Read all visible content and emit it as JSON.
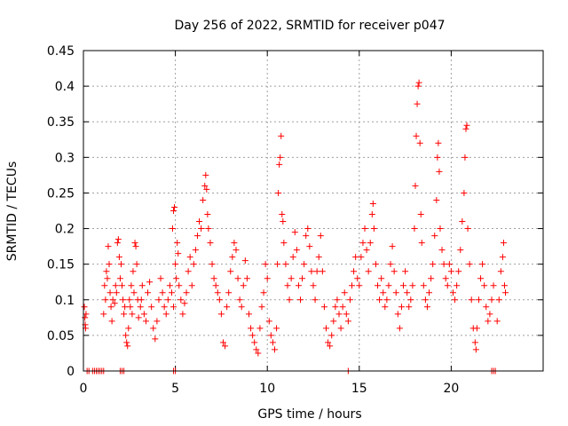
{
  "chart_data": {
    "type": "scatter",
    "title": "Day 256 of 2022, SRMTID for receiver p047",
    "xlabel": "GPS time / hours",
    "ylabel": "SRMTID / TECUs",
    "xlim": [
      0,
      25
    ],
    "ylim": [
      0,
      0.45
    ],
    "xticks": [
      0,
      5,
      10,
      15,
      20
    ],
    "xtick_labels": [
      "0",
      "5",
      "10",
      "15",
      "20"
    ],
    "yticks": [
      0,
      0.05,
      0.1,
      0.15,
      0.2,
      0.25,
      0.3,
      0.35,
      0.4,
      0.45
    ],
    "ytick_labels": [
      "0",
      "0.05",
      "0.1",
      "0.15",
      "0.2",
      "0.25",
      "0.3",
      "0.35",
      "0.4",
      "0.45"
    ],
    "grid": true,
    "marker": "+",
    "series": [
      {
        "name": "SRMTID",
        "color": "#ff0000",
        "points": [
          [
            0.05,
            0.09
          ],
          [
            0.08,
            0.075
          ],
          [
            0.1,
            0.065
          ],
          [
            0.12,
            0.06
          ],
          [
            0.14,
            0.08
          ],
          [
            0.2,
            0.0
          ],
          [
            0.3,
            0.0
          ],
          [
            0.5,
            0.0
          ],
          [
            0.6,
            0.0
          ],
          [
            0.7,
            0.0
          ],
          [
            0.8,
            0.0
          ],
          [
            0.9,
            0.0
          ],
          [
            1.0,
            0.0
          ],
          [
            1.1,
            0.0
          ],
          [
            1.1,
            0.08
          ],
          [
            1.15,
            0.12
          ],
          [
            1.2,
            0.1
          ],
          [
            1.25,
            0.14
          ],
          [
            1.3,
            0.13
          ],
          [
            1.35,
            0.175
          ],
          [
            1.4,
            0.15
          ],
          [
            1.45,
            0.11
          ],
          [
            1.5,
            0.09
          ],
          [
            1.55,
            0.07
          ],
          [
            1.6,
            0.1
          ],
          [
            1.7,
            0.095
          ],
          [
            1.75,
            0.12
          ],
          [
            1.8,
            0.11
          ],
          [
            1.85,
            0.18
          ],
          [
            1.9,
            0.185
          ],
          [
            1.95,
            0.16
          ],
          [
            2.0,
            0.13
          ],
          [
            2.05,
            0.15
          ],
          [
            2.1,
            0.12
          ],
          [
            2.15,
            0.1
          ],
          [
            2.2,
            0.08
          ],
          [
            2.25,
            0.09
          ],
          [
            2.0,
            0.0
          ],
          [
            2.1,
            0.0
          ],
          [
            2.2,
            0.0
          ],
          [
            2.3,
            0.05
          ],
          [
            2.35,
            0.04
          ],
          [
            2.4,
            0.035
          ],
          [
            2.45,
            0.06
          ],
          [
            2.5,
            0.1
          ],
          [
            2.55,
            0.09
          ],
          [
            2.6,
            0.12
          ],
          [
            2.65,
            0.08
          ],
          [
            2.7,
            0.14
          ],
          [
            2.75,
            0.11
          ],
          [
            2.8,
            0.18
          ],
          [
            2.85,
            0.175
          ],
          [
            2.9,
            0.15
          ],
          [
            2.95,
            0.1
          ],
          [
            3.0,
            0.075
          ],
          [
            3.1,
            0.09
          ],
          [
            3.15,
            0.1
          ],
          [
            3.2,
            0.12
          ],
          [
            3.3,
            0.08
          ],
          [
            3.4,
            0.07
          ],
          [
            3.5,
            0.11
          ],
          [
            3.6,
            0.125
          ],
          [
            3.7,
            0.09
          ],
          [
            3.8,
            0.06
          ],
          [
            3.9,
            0.045
          ],
          [
            4.0,
            0.07
          ],
          [
            4.1,
            0.1
          ],
          [
            4.2,
            0.13
          ],
          [
            4.3,
            0.11
          ],
          [
            4.4,
            0.09
          ],
          [
            4.5,
            0.08
          ],
          [
            4.6,
            0.1
          ],
          [
            4.7,
            0.12
          ],
          [
            4.8,
            0.11
          ],
          [
            4.9,
            0.09
          ],
          [
            4.85,
            0.2
          ],
          [
            4.9,
            0.225
          ],
          [
            4.95,
            0.23
          ],
          [
            5.0,
            0.15
          ],
          [
            5.05,
            0.13
          ],
          [
            5.1,
            0.18
          ],
          [
            5.15,
            0.165
          ],
          [
            4.9,
            0.0
          ],
          [
            5.0,
            0.0
          ],
          [
            5.2,
            0.12
          ],
          [
            5.3,
            0.1
          ],
          [
            5.4,
            0.08
          ],
          [
            5.5,
            0.095
          ],
          [
            5.6,
            0.11
          ],
          [
            5.7,
            0.14
          ],
          [
            5.8,
            0.16
          ],
          [
            5.9,
            0.12
          ],
          [
            6.0,
            0.15
          ],
          [
            6.1,
            0.17
          ],
          [
            6.2,
            0.19
          ],
          [
            6.3,
            0.21
          ],
          [
            6.4,
            0.2
          ],
          [
            6.5,
            0.24
          ],
          [
            6.6,
            0.26
          ],
          [
            6.65,
            0.275
          ],
          [
            6.7,
            0.255
          ],
          [
            6.75,
            0.22
          ],
          [
            6.8,
            0.2
          ],
          [
            6.9,
            0.18
          ],
          [
            7.0,
            0.15
          ],
          [
            7.1,
            0.13
          ],
          [
            7.2,
            0.12
          ],
          [
            7.3,
            0.11
          ],
          [
            7.4,
            0.1
          ],
          [
            7.5,
            0.08
          ],
          [
            7.6,
            0.04
          ],
          [
            7.7,
            0.035
          ],
          [
            7.8,
            0.09
          ],
          [
            7.9,
            0.11
          ],
          [
            8.0,
            0.14
          ],
          [
            8.1,
            0.16
          ],
          [
            8.2,
            0.18
          ],
          [
            8.3,
            0.17
          ],
          [
            8.4,
            0.13
          ],
          [
            8.5,
            0.1
          ],
          [
            8.6,
            0.09
          ],
          [
            8.7,
            0.12
          ],
          [
            8.8,
            0.155
          ],
          [
            8.9,
            0.13
          ],
          [
            9.0,
            0.08
          ],
          [
            9.1,
            0.06
          ],
          [
            9.2,
            0.05
          ],
          [
            9.3,
            0.04
          ],
          [
            9.4,
            0.03
          ],
          [
            9.5,
            0.025
          ],
          [
            9.6,
            0.06
          ],
          [
            9.7,
            0.09
          ],
          [
            9.8,
            0.11
          ],
          [
            9.9,
            0.15
          ],
          [
            10.0,
            0.13
          ],
          [
            10.1,
            0.07
          ],
          [
            10.2,
            0.05
          ],
          [
            10.3,
            0.04
          ],
          [
            10.4,
            0.03
          ],
          [
            10.5,
            0.06
          ],
          [
            10.55,
            0.15
          ],
          [
            10.6,
            0.25
          ],
          [
            10.65,
            0.29
          ],
          [
            10.7,
            0.3
          ],
          [
            10.75,
            0.33
          ],
          [
            10.8,
            0.22
          ],
          [
            10.85,
            0.21
          ],
          [
            10.9,
            0.18
          ],
          [
            11.0,
            0.15
          ],
          [
            11.1,
            0.12
          ],
          [
            11.2,
            0.1
          ],
          [
            11.3,
            0.13
          ],
          [
            11.4,
            0.16
          ],
          [
            11.5,
            0.195
          ],
          [
            11.6,
            0.17
          ],
          [
            11.7,
            0.12
          ],
          [
            11.8,
            0.1
          ],
          [
            11.9,
            0.13
          ],
          [
            12.0,
            0.15
          ],
          [
            12.1,
            0.19
          ],
          [
            12.2,
            0.2
          ],
          [
            12.3,
            0.175
          ],
          [
            12.4,
            0.14
          ],
          [
            12.5,
            0.12
          ],
          [
            12.6,
            0.1
          ],
          [
            12.7,
            0.14
          ],
          [
            12.8,
            0.16
          ],
          [
            12.9,
            0.19
          ],
          [
            13.0,
            0.14
          ],
          [
            13.1,
            0.09
          ],
          [
            13.2,
            0.06
          ],
          [
            13.3,
            0.04
          ],
          [
            13.4,
            0.035
          ],
          [
            13.5,
            0.05
          ],
          [
            13.6,
            0.07
          ],
          [
            13.7,
            0.09
          ],
          [
            13.8,
            0.1
          ],
          [
            13.9,
            0.08
          ],
          [
            14.0,
            0.06
          ],
          [
            14.1,
            0.09
          ],
          [
            14.2,
            0.11
          ],
          [
            14.3,
            0.08
          ],
          [
            14.4,
            0.0
          ],
          [
            14.4,
            0.07
          ],
          [
            14.5,
            0.1
          ],
          [
            14.6,
            0.12
          ],
          [
            14.7,
            0.14
          ],
          [
            14.8,
            0.16
          ],
          [
            14.9,
            0.13
          ],
          [
            15.0,
            0.12
          ],
          [
            15.1,
            0.16
          ],
          [
            15.2,
            0.18
          ],
          [
            15.3,
            0.2
          ],
          [
            15.4,
            0.17
          ],
          [
            15.5,
            0.14
          ],
          [
            15.6,
            0.18
          ],
          [
            15.7,
            0.22
          ],
          [
            15.75,
            0.235
          ],
          [
            15.8,
            0.2
          ],
          [
            15.9,
            0.15
          ],
          [
            16.0,
            0.12
          ],
          [
            16.1,
            0.1
          ],
          [
            16.2,
            0.13
          ],
          [
            16.3,
            0.11
          ],
          [
            16.4,
            0.09
          ],
          [
            16.5,
            0.1
          ],
          [
            16.6,
            0.12
          ],
          [
            16.7,
            0.15
          ],
          [
            16.8,
            0.175
          ],
          [
            16.9,
            0.14
          ],
          [
            17.0,
            0.11
          ],
          [
            17.1,
            0.08
          ],
          [
            17.2,
            0.06
          ],
          [
            17.3,
            0.09
          ],
          [
            17.4,
            0.12
          ],
          [
            17.5,
            0.14
          ],
          [
            17.6,
            0.11
          ],
          [
            17.7,
            0.09
          ],
          [
            17.8,
            0.1
          ],
          [
            17.9,
            0.12
          ],
          [
            18.0,
            0.2
          ],
          [
            18.05,
            0.26
          ],
          [
            18.1,
            0.33
          ],
          [
            18.15,
            0.375
          ],
          [
            18.2,
            0.4
          ],
          [
            18.25,
            0.405
          ],
          [
            18.3,
            0.32
          ],
          [
            18.35,
            0.22
          ],
          [
            18.4,
            0.18
          ],
          [
            18.5,
            0.12
          ],
          [
            18.6,
            0.1
          ],
          [
            18.7,
            0.09
          ],
          [
            18.8,
            0.11
          ],
          [
            18.9,
            0.13
          ],
          [
            19.0,
            0.15
          ],
          [
            19.1,
            0.19
          ],
          [
            19.2,
            0.24
          ],
          [
            19.25,
            0.3
          ],
          [
            19.3,
            0.32
          ],
          [
            19.35,
            0.28
          ],
          [
            19.4,
            0.2
          ],
          [
            19.5,
            0.17
          ],
          [
            19.6,
            0.15
          ],
          [
            19.7,
            0.13
          ],
          [
            19.8,
            0.12
          ],
          [
            19.9,
            0.15
          ],
          [
            20.0,
            0.14
          ],
          [
            20.1,
            0.11
          ],
          [
            20.2,
            0.1
          ],
          [
            20.3,
            0.12
          ],
          [
            20.4,
            0.14
          ],
          [
            20.5,
            0.17
          ],
          [
            20.6,
            0.21
          ],
          [
            20.7,
            0.25
          ],
          [
            20.75,
            0.3
          ],
          [
            20.8,
            0.34
          ],
          [
            20.85,
            0.345
          ],
          [
            20.9,
            0.2
          ],
          [
            21.0,
            0.15
          ],
          [
            21.1,
            0.1
          ],
          [
            21.2,
            0.06
          ],
          [
            21.3,
            0.04
          ],
          [
            21.35,
            0.03
          ],
          [
            21.4,
            0.06
          ],
          [
            21.5,
            0.1
          ],
          [
            21.6,
            0.13
          ],
          [
            21.7,
            0.15
          ],
          [
            21.8,
            0.12
          ],
          [
            21.9,
            0.09
          ],
          [
            22.0,
            0.07
          ],
          [
            22.1,
            0.08
          ],
          [
            22.2,
            0.1
          ],
          [
            22.3,
            0.12
          ],
          [
            22.2,
            0.0
          ],
          [
            22.3,
            0.0
          ],
          [
            22.4,
            0.0
          ],
          [
            22.5,
            0.07
          ],
          [
            22.6,
            0.1
          ],
          [
            22.7,
            0.14
          ],
          [
            22.8,
            0.16
          ],
          [
            22.85,
            0.18
          ],
          [
            22.9,
            0.12
          ],
          [
            22.95,
            0.11
          ]
        ]
      }
    ]
  }
}
